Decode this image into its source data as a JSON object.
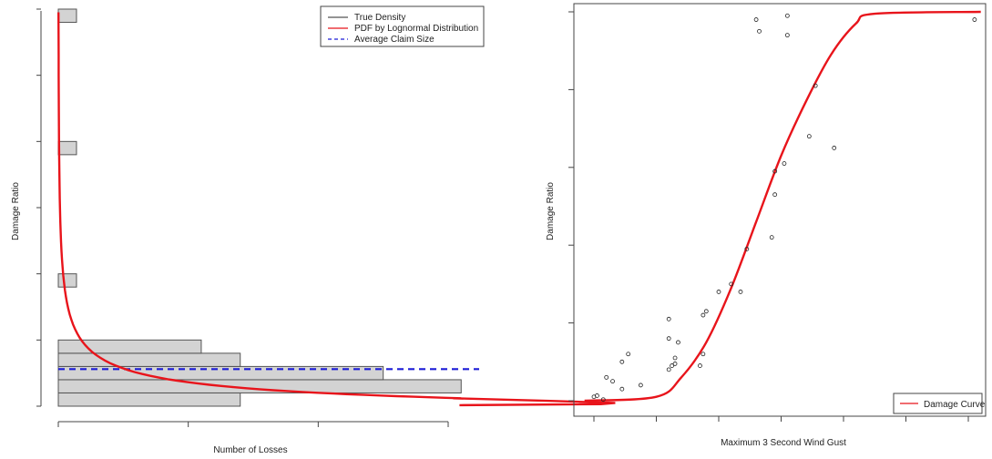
{
  "chart_data": [
    {
      "type": "bar",
      "orientation": "horizontal",
      "xlabel": "Number of Losses",
      "ylabel": "Damage Ratio",
      "legend_position": "top-right",
      "legend": [
        {
          "label": "True Density",
          "color": "#555555",
          "style": "solid"
        },
        {
          "label": "PDF by Lognormal Distribution",
          "color": "#e8141b",
          "style": "solid"
        },
        {
          "label": "Average Claim Size",
          "color": "#1c1cd6",
          "style": "dashed"
        }
      ],
      "bar_color": "#d3d3d3",
      "bars": [
        {
          "y0": 0.0,
          "y1": 0.02,
          "count": 14
        },
        {
          "y0": 0.02,
          "y1": 0.04,
          "count": 31
        },
        {
          "y0": 0.04,
          "y1": 0.06,
          "count": 25
        },
        {
          "y0": 0.06,
          "y1": 0.08,
          "count": 14
        },
        {
          "y0": 0.08,
          "y1": 0.1,
          "count": 11
        },
        {
          "y0": 0.18,
          "y1": 0.2,
          "count": 1.4
        },
        {
          "y0": 0.38,
          "y1": 0.4,
          "count": 1.4
        },
        {
          "y0": 0.58,
          "y1": 0.6,
          "count": 1.4
        }
      ],
      "average_claim_size": 0.056,
      "xlim": [
        0,
        30
      ],
      "ylim": [
        0,
        0.6
      ]
    },
    {
      "type": "scatter",
      "xlabel": "Maximum 3 Second Wind Gust",
      "ylabel": "Damage Ratio",
      "legend_position": "bottom-right",
      "legend": [
        {
          "label": "Damage Curve",
          "color": "#e8141b",
          "style": "solid"
        }
      ],
      "xlim": [
        0,
        6
      ],
      "ylim": [
        0,
        1.0
      ],
      "points": [
        [
          0.0,
          0.01
        ],
        [
          0.05,
          0.013
        ],
        [
          0.15,
          0.003
        ],
        [
          0.2,
          0.06
        ],
        [
          0.3,
          0.05
        ],
        [
          0.45,
          0.03
        ],
        [
          0.45,
          0.1
        ],
        [
          0.55,
          0.12
        ],
        [
          0.75,
          0.04
        ],
        [
          1.2,
          0.21
        ],
        [
          1.2,
          0.16
        ],
        [
          1.2,
          0.08
        ],
        [
          1.25,
          0.09
        ],
        [
          1.3,
          0.11
        ],
        [
          1.3,
          0.095
        ],
        [
          1.35,
          0.15
        ],
        [
          1.7,
          0.09
        ],
        [
          1.75,
          0.22
        ],
        [
          1.75,
          0.12
        ],
        [
          1.8,
          0.23
        ],
        [
          2.0,
          0.28
        ],
        [
          2.2,
          0.3
        ],
        [
          2.35,
          0.28
        ],
        [
          2.45,
          0.39
        ],
        [
          2.6,
          0.98
        ],
        [
          2.65,
          0.95
        ],
        [
          2.85,
          0.42
        ],
        [
          2.9,
          0.53
        ],
        [
          2.9,
          0.59
        ],
        [
          3.05,
          0.61
        ],
        [
          3.1,
          0.99
        ],
        [
          3.1,
          0.94
        ],
        [
          3.45,
          0.68
        ],
        [
          3.55,
          0.81
        ],
        [
          3.85,
          0.65
        ],
        [
          6.1,
          0.98
        ]
      ],
      "curve": [
        [
          -0.15,
          0.0
        ],
        [
          1.0,
          0.01
        ],
        [
          1.4,
          0.06
        ],
        [
          1.8,
          0.15
        ],
        [
          2.2,
          0.29
        ],
        [
          2.6,
          0.46
        ],
        [
          3.0,
          0.63
        ],
        [
          3.4,
          0.77
        ],
        [
          3.8,
          0.89
        ],
        [
          4.2,
          0.97
        ],
        [
          4.5,
          0.995
        ],
        [
          6.2,
          1.0
        ]
      ]
    }
  ]
}
